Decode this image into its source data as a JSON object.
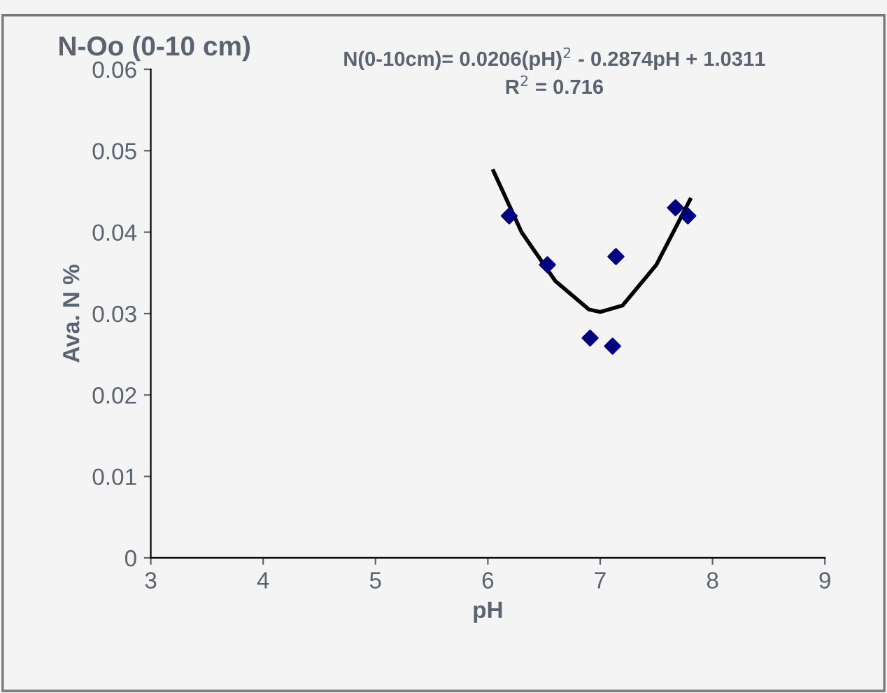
{
  "chart_data": {
    "type": "scatter",
    "title": "N-Oo (0-10 cm)",
    "xlabel": "pH",
    "ylabel": "Ava. N %",
    "xlim": [
      3,
      9
    ],
    "xticks": [
      3,
      4,
      5,
      6,
      7,
      8,
      9
    ],
    "ylim": [
      0,
      0.06
    ],
    "yticks": [
      {
        "value": 0,
        "label": "0"
      },
      {
        "value": 0.01,
        "label": "0.01"
      },
      {
        "value": 0.02,
        "label": "0.02"
      },
      {
        "value": 0.03,
        "label": "0.03"
      },
      {
        "value": 0.04,
        "label": "0.04"
      },
      {
        "value": 0.05,
        "label": "0.05"
      },
      {
        "value": 0.06,
        "label": "0.06"
      }
    ],
    "grid": false,
    "marker": "diamond",
    "annotations": [
      "N(0-10cm)= 0.0206(pH)$^{2}$ - 0.2874pH + 1.0311\nR$^{2}$ = 0.716"
    ],
    "series": [
      {
        "color": "#000080",
        "x": [
          6.19,
          6.53,
          7.14,
          6.91,
          7.11,
          7.67,
          7.78
        ],
        "values": [
          0.042,
          0.036,
          0.037,
          0.027,
          0.026,
          0.043,
          0.042
        ]
      },
      {
        "type": "line",
        "color": "#000000",
        "marker": "none",
        "x": [
          6.05,
          6.3,
          6.6,
          6.9,
          7.0,
          7.2,
          7.5,
          7.8
        ],
        "values": [
          0.0475,
          0.04,
          0.034,
          0.0305,
          0.0302,
          0.031,
          0.036,
          0.044
        ]
      }
    ]
  }
}
